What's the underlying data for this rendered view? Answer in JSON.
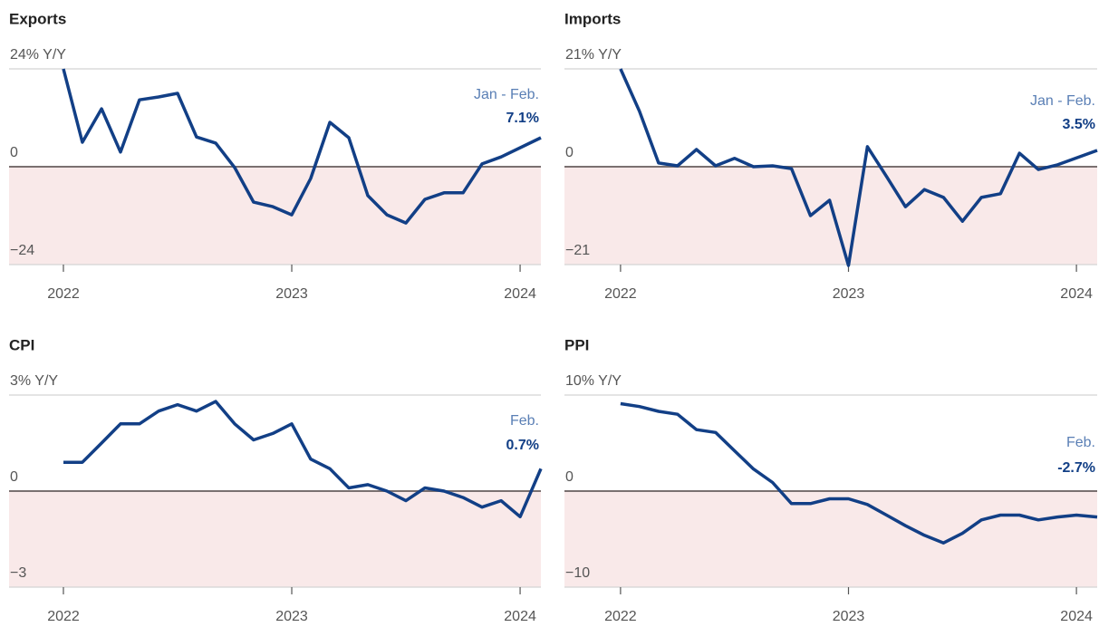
{
  "chart_data": [
    {
      "type": "line",
      "title": "Exports",
      "annotation": "Jan - Feb.",
      "last_value_label": "7.1%",
      "color": "#123f86",
      "negative_fill": "#f9e9e9",
      "x": [
        2022,
        2022.083,
        2022.167,
        2022.25,
        2022.333,
        2022.417,
        2022.5,
        2022.583,
        2022.667,
        2022.75,
        2022.833,
        2022.917,
        2023,
        2023.083,
        2023.167,
        2023.25,
        2023.333,
        2023.417,
        2023.5,
        2023.583,
        2023.667,
        2023.75,
        2023.833,
        2023.917,
        2024.091
      ],
      "values": [
        24,
        6,
        14.2,
        3.6,
        16.4,
        17.1,
        18,
        7.3,
        5.8,
        -0.2,
        -8.7,
        -9.8,
        -11.8,
        -2.9,
        10.9,
        7.1,
        -7.1,
        -11.8,
        -13.8,
        -8,
        -6.4,
        -6.4,
        0.7,
        2.4,
        7.1
      ],
      "xlim": [
        2021.762,
        2024.091
      ],
      "xticks": [
        2022,
        2023,
        2024
      ],
      "ylim": [
        -24,
        24
      ],
      "yticks": [
        {
          "value": 24,
          "label": "24% Y/Y"
        },
        0,
        {
          "value": -24,
          "label": "−24"
        }
      ]
    },
    {
      "type": "line",
      "title": "Imports",
      "annotation": "Jan - Feb.",
      "last_value_label": "3.5%",
      "color": "#123f86",
      "negative_fill": "#f9e9e9",
      "x": [
        2022,
        2022.083,
        2022.167,
        2022.25,
        2022.333,
        2022.417,
        2022.5,
        2022.583,
        2022.667,
        2022.75,
        2022.833,
        2022.917,
        2023,
        2023.083,
        2023.167,
        2023.25,
        2023.333,
        2023.417,
        2023.5,
        2023.583,
        2023.667,
        2023.75,
        2023.833,
        2023.917,
        2024.091
      ],
      "values": [
        21,
        11.9,
        0.8,
        0.2,
        3.7,
        0.2,
        1.8,
        0,
        0.2,
        -0.4,
        -10.5,
        -7.2,
        -21.2,
        4.3,
        -2.1,
        -8.6,
        -4.9,
        -6.6,
        -11.7,
        -6.6,
        -5.8,
        2.9,
        -0.6,
        0.4,
        3.5
      ],
      "xlim": [
        2021.754,
        2024.091
      ],
      "xticks": [
        2022,
        2023,
        2024
      ],
      "ylim": [
        -21,
        21
      ],
      "yticks": [
        {
          "value": 21,
          "label": "21% Y/Y"
        },
        0,
        {
          "value": -21,
          "label": "−21"
        }
      ]
    },
    {
      "type": "line",
      "title": "CPI",
      "annotation": "Feb.",
      "last_value_label": "0.7%",
      "color": "#123f86",
      "negative_fill": "#f9e9e9",
      "x": [
        2022,
        2022.083,
        2022.167,
        2022.25,
        2022.333,
        2022.417,
        2022.5,
        2022.583,
        2022.667,
        2022.75,
        2022.833,
        2022.917,
        2023,
        2023.083,
        2023.167,
        2023.25,
        2023.333,
        2023.417,
        2023.5,
        2023.583,
        2023.667,
        2023.75,
        2023.833,
        2023.917,
        2024,
        2024.091
      ],
      "values": [
        0.9,
        0.9,
        1.5,
        2.1,
        2.1,
        2.5,
        2.7,
        2.5,
        2.8,
        2.1,
        1.6,
        1.8,
        2.1,
        1,
        0.7,
        0.1,
        0.2,
        0,
        -0.3,
        0.1,
        0,
        -0.2,
        -0.5,
        -0.3,
        -0.8,
        0.7
      ],
      "xlim": [
        2021.762,
        2024.091
      ],
      "xticks": [
        2022,
        2023,
        2024
      ],
      "ylim": [
        -3,
        3
      ],
      "yticks": [
        {
          "value": 3,
          "label": "3% Y/Y"
        },
        0,
        {
          "value": -3,
          "label": "−3"
        }
      ]
    },
    {
      "type": "line",
      "title": "PPI",
      "annotation": "Feb.",
      "last_value_label": "-2.7%",
      "color": "#123f86",
      "negative_fill": "#f9e9e9",
      "x": [
        2022,
        2022.083,
        2022.167,
        2022.25,
        2022.333,
        2022.417,
        2022.5,
        2022.583,
        2022.667,
        2022.75,
        2022.833,
        2022.917,
        2023,
        2023.083,
        2023.167,
        2023.25,
        2023.333,
        2023.417,
        2023.5,
        2023.583,
        2023.667,
        2023.75,
        2023.833,
        2023.917,
        2024,
        2024.091
      ],
      "values": [
        9.1,
        8.8,
        8.3,
        8,
        6.4,
        6.1,
        4.2,
        2.3,
        0.9,
        -1.3,
        -1.3,
        -0.8,
        -0.8,
        -1.4,
        -2.5,
        -3.6,
        -4.6,
        -5.4,
        -4.4,
        -3,
        -2.5,
        -2.5,
        -3,
        -2.7,
        -2.5,
        -2.7
      ],
      "xlim": [
        2021.754,
        2024.091
      ],
      "xticks": [
        2022,
        2023,
        2024
      ],
      "ylim": [
        -10,
        10
      ],
      "yticks": [
        {
          "value": 10,
          "label": "10% Y/Y"
        },
        0,
        {
          "value": -10,
          "label": "−10"
        }
      ]
    }
  ]
}
